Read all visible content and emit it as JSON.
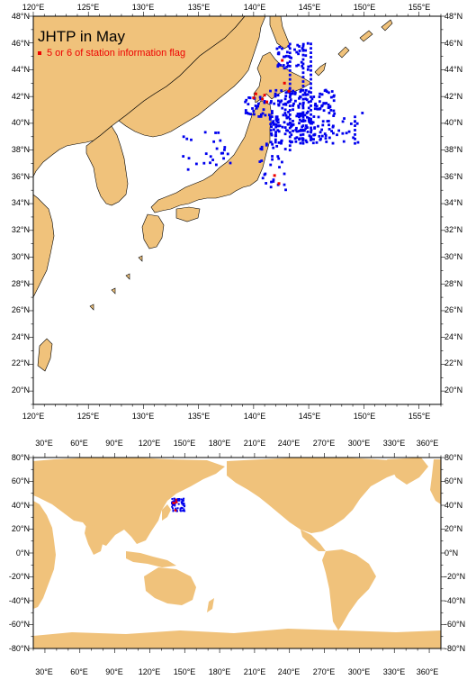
{
  "title": "JHTP in May",
  "legend_label": "5 or 6 of station information flag",
  "colors": {
    "land": "#f0c27b",
    "ocean": "#ffffff",
    "station": "#0000ee",
    "flagged": "#ee0000",
    "frame": "#000000"
  },
  "regional_map": {
    "lon_range": [
      120,
      157
    ],
    "lat_range": [
      19,
      48
    ],
    "top_lon_labels": [
      "120°E",
      "125°E",
      "130°E",
      "135°E",
      "140°E",
      "145°E",
      "150°E",
      "155°E"
    ],
    "bottom_lon_labels": [
      "120°E",
      "125°E",
      "130°E",
      "135°E",
      "140°E",
      "145°E",
      "150°E",
      "155°E"
    ],
    "left_lat_labels": [
      "48°N",
      "46°N",
      "44°N",
      "42°N",
      "40°N",
      "38°N",
      "36°N",
      "34°N",
      "32°N",
      "30°N",
      "28°N",
      "26°N",
      "24°N",
      "22°N",
      "20°N"
    ],
    "right_lat_labels": [
      "48°N",
      "46°N",
      "44°N",
      "42°N",
      "40°N",
      "38°N",
      "36°N",
      "34°N",
      "32°N",
      "30°N",
      "28°N",
      "26°N",
      "24°N",
      "22°N",
      "20°N"
    ]
  },
  "global_map": {
    "lon_range": [
      20,
      370
    ],
    "lat_range": [
      -80,
      80
    ],
    "top_lon_labels": [
      "30°E",
      "60°E",
      "90°E",
      "120°E",
      "150°E",
      "180°E",
      "210°E",
      "240°E",
      "270°E",
      "300°E",
      "330°E",
      "360°E"
    ],
    "bottom_lon_labels": [
      "30°E",
      "60°E",
      "90°E",
      "120°E",
      "150°E",
      "180°E",
      "210°E",
      "240°E",
      "270°E",
      "300°E",
      "330°E",
      "360°E"
    ],
    "left_lat_labels": [
      "80°N",
      "60°N",
      "40°N",
      "20°N",
      "0°N",
      "-20°N",
      "-40°N",
      "-60°N",
      "-80°N"
    ],
    "right_lat_labels": [
      "80°N",
      "60°N",
      "40°N",
      "20°N",
      "0°N",
      "-20°N",
      "-40°N",
      "-60°N",
      "-80°N"
    ]
  }
}
